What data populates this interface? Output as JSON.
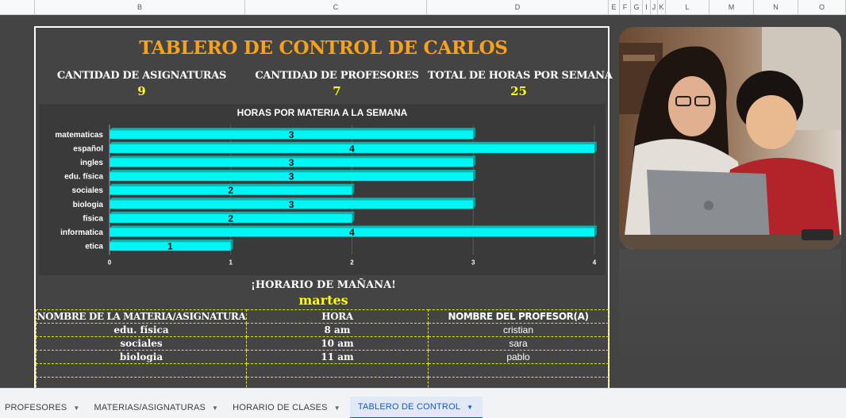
{
  "columns": [
    "B",
    "C",
    "D",
    "E",
    "F",
    "G",
    "I",
    "J",
    "K",
    "L",
    "M",
    "N",
    "O"
  ],
  "dashboard": {
    "title": "TABLERO DE CONTROL DE CARLOS",
    "stats": [
      {
        "label": "CANTIDAD DE ASIGNATURAS",
        "value": "9"
      },
      {
        "label": "CANTIDAD DE PROFESORES",
        "value": "7"
      },
      {
        "label": "TOTAL DE HORAS POR SEMANA",
        "value": "25"
      }
    ]
  },
  "chart_data": {
    "type": "bar",
    "orientation": "horizontal",
    "title": "HORAS POR MATERIA A LA SEMANA",
    "categories": [
      "matematicas",
      "español",
      "ingles",
      "edu. física",
      "sociales",
      "biologia",
      "fisica",
      "informatica",
      "etica"
    ],
    "values": [
      3,
      4,
      3,
      3,
      2,
      3,
      2,
      4,
      1
    ],
    "xlim": [
      0,
      4
    ],
    "xticks": [
      "0",
      "1",
      "2",
      "3",
      "4"
    ],
    "bar_color": "#00f5f5",
    "grid": true,
    "legend": "none"
  },
  "tomorrow": {
    "title": "¡HORARIO DE MAÑANA!",
    "day": "martes",
    "headers": [
      "NOMBRE DE LA MATERIA/ASIGNATURA",
      "HORA",
      "NOMBRE DEL PROFESOR(A)"
    ],
    "rows": [
      {
        "subject": "edu. física",
        "hour": "8 am",
        "teacher": "cristian"
      },
      {
        "subject": "sociales",
        "hour": "10 am",
        "teacher": "sara"
      },
      {
        "subject": "biologia",
        "hour": "11 am",
        "teacher": "pablo"
      }
    ]
  },
  "tabs": [
    {
      "label": "PROFESORES",
      "active": false
    },
    {
      "label": "MATERIAS/ASIGNATURAS",
      "active": false
    },
    {
      "label": "HORARIO DE CLASES",
      "active": false
    },
    {
      "label": "TABLERO DE CONTROL",
      "active": true
    }
  ],
  "colors": {
    "title": "#f7a21a",
    "value": "#ffff00",
    "active_tab": "#1a57c4"
  }
}
